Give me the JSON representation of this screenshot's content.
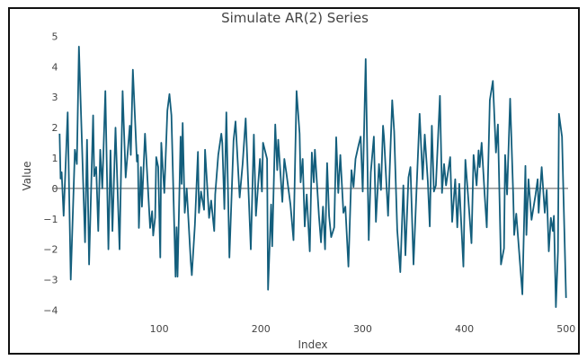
{
  "chart_data": {
    "type": "line",
    "title": "Simulate AR(2) Series",
    "xlabel": "Index",
    "ylabel": "Value",
    "xlim": [
      -4,
      502
    ],
    "ylim": [
      -4.4,
      5.1
    ],
    "xticks": [
      100,
      200,
      300,
      400,
      500
    ],
    "yticks": [
      -4,
      -3,
      -2,
      -1,
      0,
      1,
      2,
      3,
      4,
      5
    ],
    "grid": false,
    "zero_line": true,
    "line_color": "#135e7c",
    "zero_line_color": "#555555",
    "series": [
      {
        "x": [
          2,
          3,
          4,
          6,
          10,
          13,
          17,
          19,
          21,
          27,
          29,
          31,
          35,
          36,
          38,
          40,
          42,
          44,
          47,
          50,
          52,
          54,
          57,
          61,
          64,
          67,
          71,
          72,
          74,
          78,
          79,
          80,
          82,
          83,
          86,
          91,
          93,
          94,
          96,
          97,
          99,
          101,
          102,
          105,
          108,
          110,
          112,
          116,
          117,
          118,
          121,
          122,
          123,
          125,
          127,
          131,
          132,
          135,
          138,
          139,
          141,
          144,
          145,
          149,
          151,
          154,
          155,
          158,
          161,
          162,
          164,
          166,
          169,
          173,
          175,
          179,
          182,
          185,
          190,
          193,
          195,
          199,
          201,
          202,
          206,
          207,
          210,
          211,
          214,
          216,
          217,
          221,
          223,
          225,
          229,
          232,
          235,
          238,
          239,
          241,
          243,
          245,
          248,
          250,
          252,
          253,
          257,
          259,
          261,
          263,
          265,
          267,
          269,
          272,
          274,
          276,
          278,
          281,
          283,
          286,
          289,
          291,
          293,
          296,
          298,
          300,
          303,
          306,
          308,
          311,
          313,
          316,
          318,
          320,
          321,
          325,
          329,
          331,
          334,
          337,
          340,
          342,
          345,
          347,
          350,
          356,
          359,
          361,
          364,
          366,
          368,
          370,
          372,
          376,
          378,
          380,
          382,
          386,
          388,
          391,
          393,
          395,
          399,
          401,
          404,
          407,
          409,
          412,
          414,
          415,
          417,
          420,
          422,
          425,
          428,
          431,
          433,
          436,
          439,
          440,
          442,
          445,
          448,
          449,
          451,
          457,
          460,
          461,
          463,
          466,
          470,
          472,
          473,
          476,
          479,
          481,
          483,
          485,
          487,
          488,
          490,
          492,
          493,
          496,
          500
        ],
        "y": [
          1.8,
          0.32,
          0.53,
          -0.9,
          2.5,
          -3.0,
          1.27,
          0.8,
          4.66,
          -1.77,
          1.6,
          -2.5,
          2.4,
          0.4,
          0.7,
          -1.4,
          1.27,
          0,
          3.2,
          -2.0,
          1.25,
          -1.4,
          2.0,
          -2.0,
          3.2,
          0.36,
          2.06,
          1.1,
          3.9,
          0.88,
          1.1,
          -1.3,
          0.7,
          -0.6,
          1.8,
          -1.3,
          -0.75,
          -1.55,
          -0.95,
          1.03,
          0.7,
          -2.27,
          1.5,
          -0.15,
          2.56,
          3.1,
          2.4,
          -2.9,
          -1.28,
          -2.9,
          1.7,
          0.15,
          2.15,
          -0.8,
          0,
          -2.4,
          -2.85,
          -1.2,
          1.2,
          -0.8,
          -0.1,
          -0.7,
          1.27,
          -0.97,
          -0.4,
          -1.4,
          -0.2,
          1.1,
          1.8,
          1.5,
          -0.68,
          2.5,
          -2.27,
          1.57,
          2.2,
          -0.3,
          0.8,
          2.3,
          -2.0,
          1.77,
          -0.9,
          0.97,
          -0.1,
          1.5,
          0.97,
          -3.33,
          -0.53,
          -1.9,
          2.1,
          0.6,
          1.6,
          -0.44,
          0.97,
          0.5,
          -0.53,
          -1.7,
          3.2,
          1.8,
          0.2,
          0.97,
          -1.25,
          -0.2,
          -2.07,
          1.18,
          0.2,
          1.27,
          -0.9,
          -1.77,
          -0.6,
          -2.0,
          0.83,
          -0.9,
          -1.6,
          -1.28,
          1.68,
          -0.15,
          1.1,
          -0.8,
          -0.6,
          -2.57,
          0.6,
          0.05,
          0.97,
          1.42,
          1.7,
          -0.1,
          4.25,
          -1.7,
          0.53,
          1.7,
          -1.1,
          0.8,
          -0.05,
          2.06,
          1.68,
          -0.9,
          2.9,
          1.87,
          -1.37,
          -2.75,
          0.1,
          -2.2,
          0.36,
          0.7,
          -2.5,
          2.45,
          0.3,
          1.77,
          0.24,
          -1.25,
          2.06,
          -0.1,
          0.1,
          3.04,
          -0.15,
          0.8,
          0.1,
          1.03,
          -1.1,
          0.3,
          -1.28,
          0.15,
          -2.57,
          0.94,
          -0.4,
          -1.8,
          1.1,
          0.1,
          1.25,
          0.7,
          1.5,
          -0.23,
          -1.28,
          2.9,
          3.53,
          1.18,
          2.1,
          -2.5,
          -1.97,
          1.1,
          -0.2,
          2.95,
          -0.2,
          -1.53,
          -0.83,
          -3.48,
          0.74,
          -1.53,
          0.3,
          -1.03,
          -0.2,
          0.3,
          -0.8,
          0.7,
          -0.8,
          -0.05,
          -2.07,
          -0.97,
          -1.4,
          -0.9,
          -3.9,
          -2.07,
          2.45,
          1.7,
          -3.6
        ]
      }
    ]
  }
}
